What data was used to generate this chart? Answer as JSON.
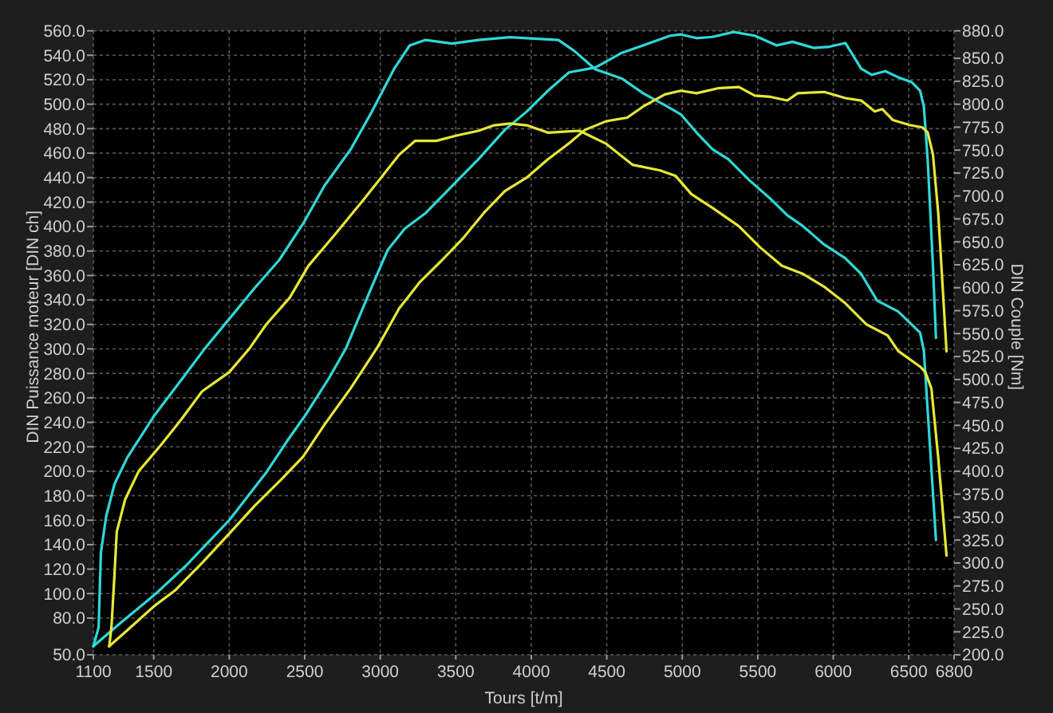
{
  "chart_data": {
    "type": "line",
    "xlabel": "Tours [t/m]",
    "ylabel": "DIN Puissance moteur [DIN ch]",
    "y2label": "DIN Couple [Nm]",
    "xlim": [
      1100,
      6800
    ],
    "xticks": [
      1100,
      1500,
      2000,
      2500,
      3000,
      3500,
      4000,
      4500,
      5000,
      5500,
      6000,
      6500,
      6800
    ],
    "ylim": [
      50,
      560
    ],
    "yticks": [
      {
        "value": 50,
        "label": "50.0"
      },
      {
        "value": 80,
        "label": "80.0"
      },
      {
        "value": 100,
        "label": "100.0"
      },
      {
        "value": 120,
        "label": "120.0"
      },
      {
        "value": 140,
        "label": "140.0"
      },
      {
        "value": 160,
        "label": "160.0"
      },
      {
        "value": 180,
        "label": "180.0"
      },
      {
        "value": 200,
        "label": "200.0"
      },
      {
        "value": 220,
        "label": "220.0"
      },
      {
        "value": 240,
        "label": "240.0"
      },
      {
        "value": 260,
        "label": "260.0"
      },
      {
        "value": 280,
        "label": "280.0"
      },
      {
        "value": 300,
        "label": "300.0"
      },
      {
        "value": 320,
        "label": "320.0"
      },
      {
        "value": 340,
        "label": "340.0"
      },
      {
        "value": 360,
        "label": "360.0"
      },
      {
        "value": 380,
        "label": "380.0"
      },
      {
        "value": 400,
        "label": "400.0"
      },
      {
        "value": 420,
        "label": "420.0"
      },
      {
        "value": 440,
        "label": "440.0"
      },
      {
        "value": 460,
        "label": "460.0"
      },
      {
        "value": 480,
        "label": "480.0"
      },
      {
        "value": 500,
        "label": "500.0"
      },
      {
        "value": 520,
        "label": "520.0"
      },
      {
        "value": 540,
        "label": "540.0"
      },
      {
        "value": 560,
        "label": "560.0"
      }
    ],
    "y2lim": [
      200,
      880
    ],
    "y2ticks": [
      {
        "value": 200,
        "label": "200.0"
      },
      {
        "value": 225,
        "label": "225.0"
      },
      {
        "value": 250,
        "label": "250.0"
      },
      {
        "value": 275,
        "label": "275.0"
      },
      {
        "value": 300,
        "label": "300.0"
      },
      {
        "value": 325,
        "label": "325.0"
      },
      {
        "value": 350,
        "label": "350.0"
      },
      {
        "value": 375,
        "label": "375.0"
      },
      {
        "value": 400,
        "label": "400.0"
      },
      {
        "value": 425,
        "label": "425.0"
      },
      {
        "value": 450,
        "label": "450.0"
      },
      {
        "value": 475,
        "label": "475.0"
      },
      {
        "value": 500,
        "label": "500.0"
      },
      {
        "value": 525,
        "label": "525.0"
      },
      {
        "value": 550,
        "label": "550.0"
      },
      {
        "value": 575,
        "label": "575.0"
      },
      {
        "value": 600,
        "label": "600.0"
      },
      {
        "value": 625,
        "label": "625.0"
      },
      {
        "value": 650,
        "label": "650.0"
      },
      {
        "value": 675,
        "label": "675.0"
      },
      {
        "value": 700,
        "label": "700.0"
      },
      {
        "value": 725,
        "label": "725.0"
      },
      {
        "value": 750,
        "label": "750.0"
      },
      {
        "value": 775,
        "label": "775.0"
      },
      {
        "value": 800,
        "label": "800.0"
      },
      {
        "value": 825,
        "label": "825.0"
      },
      {
        "value": 850,
        "label": "850.0"
      },
      {
        "value": 880,
        "label": "880.0"
      }
    ],
    "grid": true,
    "series": [
      {
        "color": "#2fd8d8",
        "axis": "y2",
        "x": [
          1100,
          1135,
          1150,
          1185,
          1240,
          1325,
          1505,
          1680,
          1835,
          2000,
          2170,
          2330,
          2490,
          2630,
          2805,
          2945,
          3090,
          3195,
          3300,
          3475,
          3650,
          3860,
          3970,
          4180,
          4285,
          4425,
          4600,
          4740,
          4885,
          4990,
          5095,
          5200,
          5305,
          5445,
          5590,
          5695,
          5800,
          5940,
          6080,
          6185,
          6290,
          6430,
          6575,
          6600,
          6645,
          6680
        ],
        "values": [
          209,
          230,
          311,
          351,
          386,
          415,
          461,
          499,
          533,
          566,
          600,
          630,
          670,
          711,
          751,
          792,
          838,
          864,
          870,
          866,
          870,
          873,
          872,
          870,
          858,
          838,
          828,
          812,
          799,
          789,
          769,
          751,
          740,
          717,
          696,
          679,
          667,
          647,
          632,
          615,
          586,
          574,
          551,
          531,
          415,
          325
        ]
      },
      {
        "color": "#2fd8d8",
        "x": [
          1100,
          1290,
          1505,
          1715,
          2000,
          2245,
          2385,
          2505,
          2665,
          2775,
          2945,
          3050,
          3160,
          3300,
          3475,
          3650,
          3825,
          3970,
          4110,
          4250,
          4425,
          4600,
          4740,
          4920,
          4990,
          5095,
          5200,
          5340,
          5480,
          5625,
          5730,
          5870,
          5975,
          6080,
          6185,
          6255,
          6345,
          6430,
          6520,
          6575,
          6600,
          6625,
          6660,
          6680
        ],
        "values": [
          57,
          77,
          99,
          123,
          160,
          199,
          225,
          246,
          277,
          301,
          351,
          381,
          398,
          411,
          433,
          455,
          479,
          494,
          511,
          526,
          530,
          542,
          548,
          556,
          557,
          554,
          555,
          559,
          556,
          548,
          551,
          546,
          547,
          550,
          529,
          524,
          527,
          522,
          518,
          511,
          498,
          455,
          368,
          309
        ]
      },
      {
        "color": "#e8e836",
        "axis": "y2",
        "x": [
          1205,
          1220,
          1240,
          1255,
          1310,
          1400,
          1540,
          1680,
          1820,
          2000,
          2135,
          2245,
          2400,
          2525,
          2700,
          2875,
          3015,
          3125,
          3230,
          3370,
          3510,
          3650,
          3755,
          3860,
          3970,
          4110,
          4215,
          4320,
          4495,
          4670,
          4850,
          4955,
          5060,
          5200,
          5375,
          5515,
          5660,
          5800,
          5940,
          6080,
          6220,
          6360,
          6430,
          6575,
          6610,
          6650,
          6695,
          6750
        ],
        "values": [
          209,
          230,
          287,
          334,
          369,
          400,
          427,
          456,
          487,
          508,
          534,
          560,
          589,
          624,
          658,
          693,
          722,
          745,
          760,
          760,
          766,
          771,
          777,
          779,
          777,
          769,
          770,
          771,
          757,
          734,
          728,
          722,
          702,
          687,
          667,
          644,
          624,
          615,
          601,
          583,
          560,
          548,
          531,
          514,
          508,
          490,
          415,
          308
        ]
      },
      {
        "color": "#e8e836",
        "x": [
          1205,
          1325,
          1505,
          1645,
          1820,
          2000,
          2170,
          2350,
          2490,
          2630,
          2805,
          2980,
          3125,
          3265,
          3405,
          3545,
          3685,
          3825,
          3970,
          4110,
          4250,
          4355,
          4495,
          4635,
          4740,
          4885,
          4990,
          5095,
          5235,
          5375,
          5480,
          5585,
          5695,
          5765,
          5940,
          6080,
          6185,
          6275,
          6325,
          6395,
          6505,
          6590,
          6625,
          6660,
          6695,
          6750
        ],
        "values": [
          57,
          70,
          90,
          103,
          125,
          149,
          172,
          194,
          212,
          238,
          268,
          301,
          333,
          355,
          372,
          390,
          411,
          429,
          440,
          455,
          468,
          479,
          486,
          489,
          498,
          508,
          511,
          509,
          513,
          514,
          507,
          506,
          503,
          509,
          510,
          505,
          503,
          494,
          496,
          487,
          483,
          481,
          477,
          459,
          411,
          298
        ]
      }
    ]
  }
}
